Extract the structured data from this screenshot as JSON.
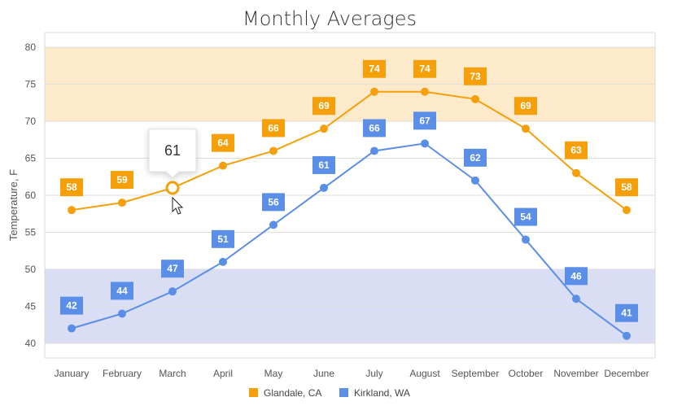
{
  "chart_data": {
    "type": "line",
    "title": "Monthly Averages",
    "ylabel": "Temperature, F",
    "xlabel": "",
    "categories": [
      "January",
      "February",
      "March",
      "April",
      "May",
      "June",
      "July",
      "August",
      "September",
      "October",
      "November",
      "December"
    ],
    "ylim": [
      38,
      82
    ],
    "yticks": [
      40,
      45,
      50,
      55,
      60,
      65,
      70,
      75,
      80
    ],
    "grid": true,
    "legend": "bottom",
    "bands": [
      {
        "from": 70,
        "to": 80,
        "color": "#fdeacb"
      },
      {
        "from": 40,
        "to": 50,
        "color": "#d9def5"
      }
    ],
    "series": [
      {
        "name": "Glandale, CA",
        "color": "#f5a00a",
        "values": [
          58,
          59,
          61,
          64,
          66,
          69,
          74,
          74,
          73,
          69,
          63,
          58
        ]
      },
      {
        "name": "Kirkland, WA",
        "color": "#5b8ee6",
        "values": [
          42,
          44,
          47,
          51,
          56,
          61,
          66,
          67,
          62,
          54,
          46,
          41
        ]
      }
    ],
    "tooltip": {
      "series": 0,
      "index": 2,
      "value": "61"
    }
  }
}
